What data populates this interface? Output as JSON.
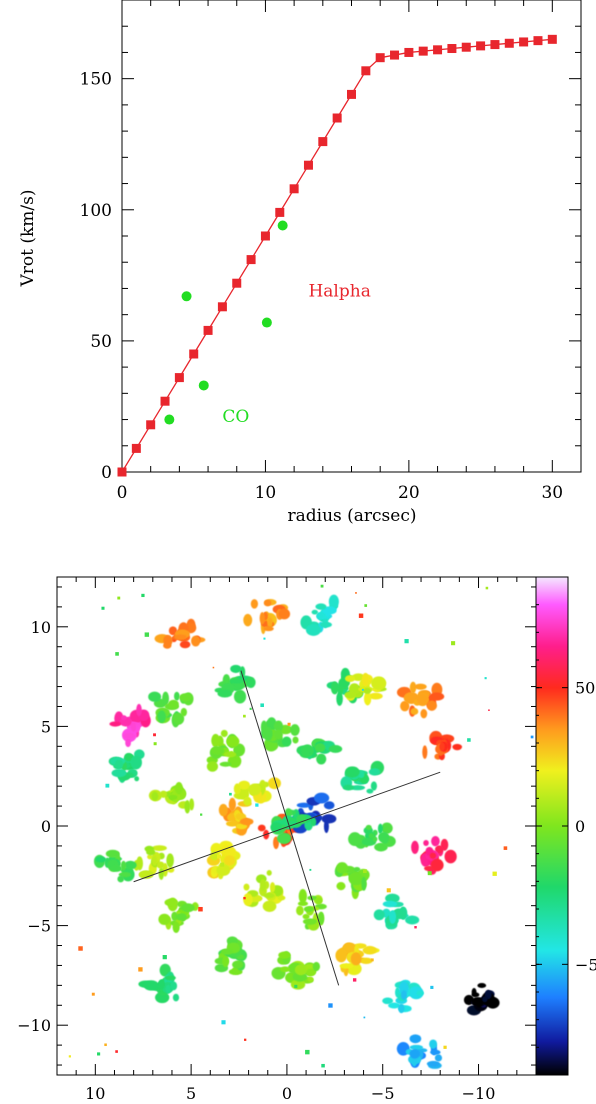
{
  "chart_data": [
    {
      "type": "scatter",
      "title": "",
      "xlabel": "radius (arcsec)",
      "ylabel": "Vrot (km/s)",
      "xlim": [
        0,
        32
      ],
      "ylim": [
        0,
        180
      ],
      "xticks": [
        0,
        10,
        20,
        30
      ],
      "yticks": [
        0,
        50,
        100,
        150
      ],
      "grid": false,
      "series": [
        {
          "name": "Halpha",
          "color": "#e8262d",
          "marker": "square",
          "connected": true,
          "x": [
            0,
            1,
            2,
            3,
            4,
            5,
            6,
            7,
            8,
            9,
            10,
            11,
            12,
            13,
            14,
            15,
            16,
            17,
            18,
            19,
            20,
            21,
            22,
            23,
            24,
            25,
            26,
            27,
            28,
            29,
            30
          ],
          "y": [
            0,
            9,
            18,
            27,
            36,
            45,
            54,
            63,
            72,
            81,
            90,
            99,
            108,
            117,
            126,
            135,
            144,
            153,
            158,
            159,
            160,
            160.5,
            161,
            161.5,
            162,
            162.5,
            163,
            163.5,
            164,
            164.5,
            165
          ]
        },
        {
          "name": "CO",
          "color": "#22dd22",
          "marker": "circle",
          "connected": false,
          "x": [
            3.3,
            4.5,
            5.7,
            10.1,
            11.2
          ],
          "y": [
            20,
            67,
            33,
            57,
            94
          ]
        }
      ],
      "annotations": [
        {
          "text": "Halpha",
          "color": "#e8262d",
          "x": 13,
          "y": 67
        },
        {
          "text": "CO",
          "color": "#22dd22",
          "x": 7,
          "y": 19
        }
      ]
    },
    {
      "type": "heatmap",
      "title": "",
      "xlabel": "",
      "ylabel": "",
      "xlim": [
        12,
        -13
      ],
      "ylim": [
        -12.5,
        12.5
      ],
      "xticks": [
        10,
        5,
        0,
        -5,
        -10
      ],
      "yticks": [
        10,
        5,
        0,
        -5,
        -10
      ],
      "xtick_labels": [
        "10",
        "5",
        "0",
        "−5",
        "−10"
      ],
      "ytick_labels": [
        "10",
        "5",
        "0",
        "−5",
        "−10"
      ],
      "colorbar": {
        "range": [
          -90,
          90
        ],
        "ticks": [
          50,
          0,
          -50
        ],
        "tick_labels": [
          "50",
          "0",
          "−50"
        ],
        "stops": [
          {
            "v": -90,
            "c": "#000000"
          },
          {
            "v": -78,
            "c": "#101a9e"
          },
          {
            "v": -62,
            "c": "#1e7fff"
          },
          {
            "v": -45,
            "c": "#22e6e6"
          },
          {
            "v": -22,
            "c": "#20d86a"
          },
          {
            "v": 0,
            "c": "#7fe61e"
          },
          {
            "v": 20,
            "c": "#f0f01e"
          },
          {
            "v": 35,
            "c": "#ff9a1e"
          },
          {
            "v": 50,
            "c": "#ff2a1e"
          },
          {
            "v": 65,
            "c": "#ff1e8c"
          },
          {
            "v": 80,
            "c": "#ff5aff"
          },
          {
            "v": 90,
            "c": "#f4e8ff"
          }
        ]
      },
      "axes_lines": [
        {
          "name": "major-axis",
          "x1": 8,
          "y1": -2.8,
          "x2": -8,
          "y2": 2.7
        },
        {
          "name": "minor-axis",
          "x1": 2.4,
          "y1": 7.8,
          "x2": -2.7,
          "y2": -8.0
        }
      ],
      "velocity_field": [
        {
          "x": 0.3,
          "y": -0.1,
          "v": 45
        },
        {
          "x": -1.4,
          "y": 0.6,
          "v": -70
        },
        {
          "x": -0.3,
          "y": 0.1,
          "v": -20
        },
        {
          "x": 2.6,
          "y": 0.6,
          "v": 30
        },
        {
          "x": 1.5,
          "y": 1.8,
          "v": 18
        },
        {
          "x": 3.2,
          "y": -1.8,
          "v": 20
        },
        {
          "x": 1.2,
          "y": -3.2,
          "v": 12
        },
        {
          "x": -1.2,
          "y": -4.2,
          "v": 0
        },
        {
          "x": -3.5,
          "y": -2.5,
          "v": -5
        },
        {
          "x": -4.5,
          "y": -0.5,
          "v": -15
        },
        {
          "x": -3.8,
          "y": 2.5,
          "v": -25
        },
        {
          "x": -1.8,
          "y": 4.0,
          "v": -20
        },
        {
          "x": 0.5,
          "y": 4.5,
          "v": -10
        },
        {
          "x": 3.5,
          "y": 3.8,
          "v": 0
        },
        {
          "x": 5.8,
          "y": 1.5,
          "v": 5
        },
        {
          "x": 6.8,
          "y": -1.8,
          "v": 10
        },
        {
          "x": 5.5,
          "y": -4.5,
          "v": 0
        },
        {
          "x": 3.0,
          "y": -6.5,
          "v": -8
        },
        {
          "x": -0.5,
          "y": -7.2,
          "v": 0
        },
        {
          "x": -3.5,
          "y": -6.5,
          "v": 25
        },
        {
          "x": -5.5,
          "y": -4.5,
          "v": -35
        },
        {
          "x": -7.5,
          "y": -1.5,
          "v": 60
        },
        {
          "x": -8.2,
          "y": 4.0,
          "v": 45
        },
        {
          "x": -7.0,
          "y": 6.5,
          "v": 38
        },
        {
          "x": -3.0,
          "y": 7.0,
          "v": -20
        },
        {
          "x": 2.5,
          "y": 7.2,
          "v": -18
        },
        {
          "x": 6.0,
          "y": 6.0,
          "v": -10
        },
        {
          "x": 8.5,
          "y": 3.0,
          "v": -25
        },
        {
          "x": 9.0,
          "y": -2.0,
          "v": -15
        },
        {
          "x": 8.0,
          "y": 5.0,
          "v": 70
        },
        {
          "x": 5.5,
          "y": 9.5,
          "v": 40
        },
        {
          "x": 1.0,
          "y": 10.5,
          "v": 35
        },
        {
          "x": -2.0,
          "y": 10.5,
          "v": -40
        },
        {
          "x": -6.0,
          "y": -8.5,
          "v": -45
        },
        {
          "x": -7.0,
          "y": -11.5,
          "v": -55
        },
        {
          "x": -10.0,
          "y": -8.8,
          "v": -90
        },
        {
          "x": 6.5,
          "y": -8.0,
          "v": -25
        },
        {
          "x": -4.0,
          "y": 7.0,
          "v": 15
        }
      ]
    }
  ]
}
